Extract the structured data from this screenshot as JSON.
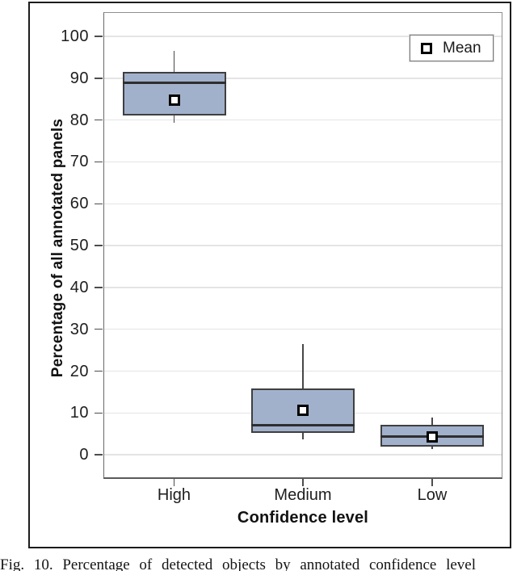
{
  "figure": {
    "caption": "Fig. 10.  Percentage of detected objects by annotated confidence level"
  },
  "legend": {
    "label": "Mean"
  },
  "chart_data": {
    "type": "boxplot",
    "title": "",
    "xlabel": "Confidence level",
    "ylabel": "Percentage of all annotated panels",
    "categories": [
      "High",
      "Medium",
      "Low"
    ],
    "ylim": [
      0,
      100
    ],
    "yticks": [
      0,
      10,
      20,
      30,
      40,
      50,
      60,
      70,
      80,
      90,
      100
    ],
    "grid": true,
    "legend_position": "top-right",
    "legend_entries": [
      {
        "label": "Mean",
        "marker": "open-square"
      }
    ],
    "box_fill_color": "#a2b1cb",
    "series": [
      {
        "category": "High",
        "whisker_low": 79.3,
        "q1": 81.0,
        "median": 89.0,
        "q3": 91.5,
        "whisker_high": 96.5,
        "mean": 84.7
      },
      {
        "category": "Medium",
        "whisker_low": 3.7,
        "q1": 5.2,
        "median": 7.1,
        "q3": 15.9,
        "whisker_high": 26.4,
        "mean": 10.6
      },
      {
        "category": "Low",
        "whisker_low": 1.4,
        "q1": 1.9,
        "median": 4.4,
        "q3": 7.2,
        "whisker_high": 8.9,
        "mean": 4.3
      }
    ]
  }
}
